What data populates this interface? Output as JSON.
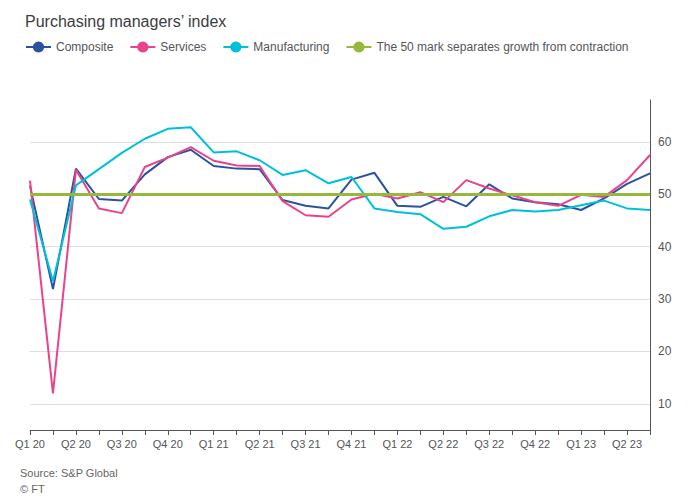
{
  "chart_data": {
    "type": "line",
    "title": "Purchasing managers’ index",
    "annotations": [
      "Source: S&P Global",
      "© FT"
    ],
    "categories": [
      "Q1 20",
      null,
      "Q2 20",
      null,
      "Q3 20",
      null,
      "Q4 20",
      null,
      "Q1 21",
      null,
      "Q2 21",
      null,
      "Q3 21",
      null,
      "Q4 21",
      null,
      "Q1 22",
      null,
      "Q2 22",
      null,
      "Q3 22",
      null,
      "Q4 22",
      null,
      "Q1 23",
      null,
      "Q2 23",
      null
    ],
    "series": [
      {
        "name": "Composite",
        "color": "#2a52a0",
        "values": [
          51.6,
          31.9,
          54.9,
          49.1,
          48.8,
          53.8,
          57.1,
          58.5,
          55.4,
          54.9,
          54.8,
          48.9,
          47.8,
          47.3,
          52.8,
          54.1,
          47.8,
          47.6,
          49.5,
          47.7,
          51.9,
          49.2,
          48.5,
          48.1,
          47.0,
          49.2,
          52.0,
          54.0
        ]
      },
      {
        "name": "Services",
        "color": "#e8438b",
        "values": [
          52.6,
          12.0,
          54.7,
          47.3,
          46.4,
          55.2,
          57.0,
          59.0,
          56.4,
          55.5,
          55.4,
          48.7,
          46.0,
          45.7,
          49.0,
          50.1,
          49.2,
          50.4,
          48.5,
          52.7,
          51.1,
          49.8,
          48.5,
          47.8,
          49.9,
          49.5,
          52.7,
          57.5
        ]
      },
      {
        "name": "Manufacturing",
        "color": "#00c0d8",
        "values": [
          49.0,
          33.4,
          51.7,
          54.8,
          57.9,
          60.6,
          62.5,
          62.8,
          58.0,
          58.2,
          56.5,
          53.7,
          54.6,
          52.1,
          53.3,
          47.3,
          46.6,
          46.2,
          43.4,
          43.8,
          45.8,
          47.0,
          46.7,
          47.0,
          47.9,
          48.8,
          47.3,
          47.0
        ]
      }
    ],
    "reference_line": {
      "value": 50,
      "label": "The 50 mark separates growth from contraction",
      "color": "#96b83c"
    },
    "ylim": [
      5,
      68
    ],
    "yticks": [
      10,
      20,
      30,
      40,
      50,
      60
    ],
    "grid": true,
    "legend": "upper left"
  }
}
